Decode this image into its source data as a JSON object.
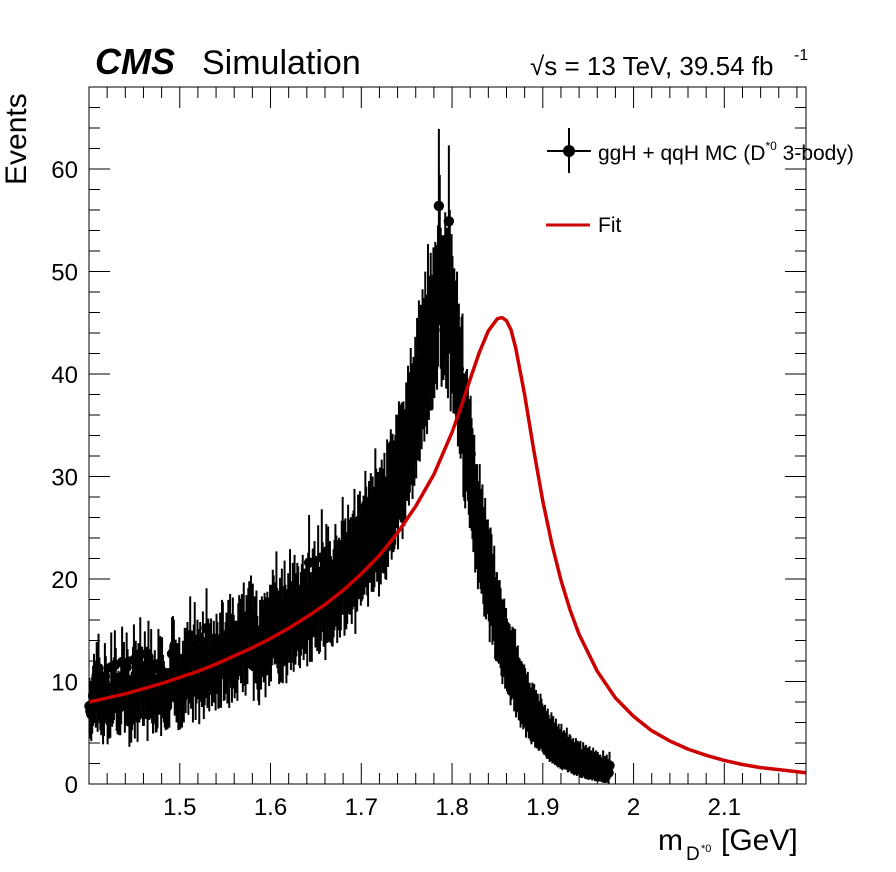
{
  "chart_data": {
    "type": "scatter",
    "cms_label": "CMS",
    "extra_label": "Simulation",
    "lumi_label": "√s = 13 TeV, 39.54 fb",
    "lumi_exponent": "-1",
    "xlabel_main": "m",
    "xlabel_sub": "D",
    "xlabel_sub_sup": "*0",
    "xlabel_unit": "[GeV]",
    "ylabel": "Events",
    "xlim": [
      1.4,
      2.19
    ],
    "ylim": [
      0,
      68
    ],
    "x_ticks": [
      "1.5",
      "1.6",
      "1.7",
      "1.8",
      "1.9",
      "2",
      "2.1"
    ],
    "x_tick_values": [
      1.5,
      1.6,
      1.7,
      1.8,
      1.9,
      2.0,
      2.1
    ],
    "y_ticks": [
      "0",
      "10",
      "20",
      "30",
      "40",
      "50",
      "60"
    ],
    "y_tick_values": [
      0,
      10,
      20,
      30,
      40,
      50,
      60
    ],
    "legend_position": "top-right",
    "series": [
      {
        "name": "ggH + qqH MC (D*0 3-body)",
        "legend_main": "ggH + qqH MC (D",
        "legend_sup": "*0",
        "legend_tail": " 3-body)",
        "style": "points-with-errors",
        "color": "#000000",
        "bin_width": 0.001,
        "x_start": 1.4005,
        "values": [
          7.6,
          7.1,
          6.8,
          7.7,
          8.6,
          9.6,
          9.0,
          8.4,
          10.6,
          7.9,
          11.3,
          9.3,
          8.1,
          7.5,
          8.4,
          6.4,
          7.4,
          10.5,
          9.4,
          8.7,
          6.4,
          8.8,
          7.1,
          7.2,
          11.4,
          8.5,
          8.9,
          9.3,
          11.6,
          10.1,
          8.0,
          7.6,
          8.2,
          7.5,
          7.5,
          8.8,
          11.9,
          10.5,
          10.6,
          7.8,
          9.0,
          11.4,
          10.0,
          9.4,
          6.1,
          7.8,
          6.6,
          8.1,
          10.2,
          12.1,
          7.1,
          10.7,
          9.0,
          6.7,
          10.5,
          9.0,
          12.7,
          10.2,
          10.2,
          8.6,
          8.6,
          11.5,
          9.5,
          10.2,
          6.8,
          12.4,
          9.3,
          10.0,
          11.7,
          8.9,
          7.7,
          8.8,
          9.9,
          7.8,
          7.9,
          8.3,
          11.7,
          9.9,
          11.1,
          7.4,
          11.0,
          9.5,
          9.0,
          8.4,
          8.1,
          8.4,
          8.2,
          8.4,
          8.4,
          10.4,
          10.6,
          12.7,
          12.8,
          12.5,
          9.8,
          10.8,
          9.0,
          10.5,
          8.1,
          11.0,
          8.2,
          9.6,
          8.4,
          10.7,
          9.0,
          11.8,
          10.1,
          11.8,
          12.3,
          9.9,
          11.2,
          14.5,
          10.6,
          10.8,
          9.0,
          12.1,
          14.0,
          9.3,
          11.2,
          12.5,
          11.7,
          8.8,
          12.3,
          11.4,
          10.8,
          13.2,
          9.4,
          11.0,
          11.8,
          15.2,
          10.7,
          12.6,
          10.3,
          12.2,
          12.6,
          10.9,
          11.3,
          12.4,
          11.3,
          10.4,
          13.0,
          12.3,
          10.6,
          10.7,
          13.1,
          10.7,
          14.2,
          14.0,
          11.5,
          11.6,
          12.3,
          13.1,
          11.2,
          14.2,
          10.7,
          14.7,
          13.0,
          11.3,
          14.4,
          12.9,
          11.8,
          12.4,
          12.4,
          11.5,
          13.9,
          14.6,
          14.3,
          13.5,
          14.7,
          12.5,
          15.7,
          13.2,
          12.1,
          14.6,
          13.4,
          15.2,
          15.8,
          15.1,
          16.3,
          15.6,
          15.6,
          11.5,
          14.5,
          13.5,
          15.0,
          12.8,
          11.5,
          11.0,
          14.2,
          12.8,
          14.5,
          14.2,
          13.6,
          14.8,
          11.9,
          14.4,
          14.9,
          14.4,
          13.2,
          15.5,
          13.7,
          15.5,
          16.8,
          16.3,
          15.6,
          15.7,
          18.4,
          15.2,
          14.6,
          13.4,
          16.1,
          13.6,
          16.9,
          13.5,
          15.4,
          17.6,
          15.5,
          13.5,
          14.4,
          16.5,
          15.8,
          18.6,
          15.0,
          15.8,
          17.4,
          14.8,
          18.1,
          15.6,
          16.5,
          17.4,
          17.1,
          15.5,
          15.2,
          16.6,
          17.3,
          18.1,
          16.1,
          16.9,
          16.8,
          17.6,
          15.4,
          18.3,
          21.6,
          15.9,
          16.6,
          15.9,
          18.6,
          18.7,
          19.3,
          17.5,
          18.0,
          17.1,
          20.7,
          16.8,
          17.0,
          18.2,
          22.1,
          19.2,
          17.6,
          18.8,
          16.1,
          20.8,
          18.0,
          20.6,
          18.1,
          19.3,
          18.0,
          17.7,
          17.6,
          18.6,
          19.4,
          20.8,
          19.8,
          18.0,
          19.4,
          19.6,
          18.6,
          19.4,
          21.1,
          23.2,
          21.1,
          18.8,
          21.3,
          19.5,
          20.1,
          22.5,
          21.2,
          21.1,
          21.4,
          20.1,
          21.7,
          22.0,
          23.9,
          19.0,
          21.4,
          21.5,
          23.4,
          22.8,
          23.7,
          22.1,
          22.6,
          22.8,
          23.3,
          23.3,
          25.5,
          24.1,
          23.2,
          22.0,
          24.6,
          24.6,
          25.3,
          23.6,
          25.0,
          23.6,
          24.1,
          27.5,
          25.7,
          24.7,
          25.4,
          23.1,
          25.8,
          24.4,
          26.5,
          25.7,
          25.6,
          27.1,
          25.0,
          24.9,
          28.3,
          26.3,
          28.0,
          28.1,
          29.2,
          27.1,
          28.8,
          27.9,
          28.2,
          28.7,
          30.5,
          30.5,
          28.2,
          31.7,
          31.4,
          31.1,
          31.6,
          29.3,
          31.7,
          30.7,
          31.0,
          33.4,
          33.4,
          34.9,
          32.9,
          34.3,
          36.5,
          35.1,
          33.6,
          35.7,
          35.0,
          37.5,
          35.8,
          39.2,
          37.7,
          40.8,
          37.6,
          40.4,
          38.9,
          41.8,
          41.0,
          39.7,
          43.4,
          41.3,
          40.5,
          45.9,
          42.0,
          43.0,
          45.1,
          43.0,
          43.1,
          45.6,
          44.3,
          46.1,
          45.8,
          45.2,
          47.6,
          56.4,
          52.2,
          47.4,
          45.5,
          46.7,
          46.2,
          46.7,
          48.8,
          45.3,
          47.4,
          44.3,
          54.9,
          49.0,
          42.9,
          46.8,
          44.8,
          42.7,
          43.7,
          42.6,
          41.5,
          43.4,
          39.2,
          40.5,
          38.4,
          37.9,
          39.3,
          39.6,
          33.8,
          33.4,
          32.6,
          34.4,
          34.6,
          33.4,
          31.9,
          30.5,
          32.2,
          30.2,
          29.3,
          27.9,
          28.7,
          25.7,
          26.1,
          26.1,
          23.9,
          24.6,
          26.1,
          23.9,
          23.4,
          24.3,
          22.3,
          20.9,
          23.1,
          20.6,
          21.2,
          21.2,
          20.4,
          18.1,
          20.5,
          19.9,
          17.8,
          18.2,
          18.9,
          16.2,
          16.0,
          16.6,
          15.9,
          15.7,
          15.9,
          15.2,
          14.3,
          13.4,
          14.2,
          14.3,
          12.9,
          13.5,
          12.6,
          12.3,
          12.2,
          12.1,
          11.0,
          11.6,
          11.9,
          11.8,
          10.3,
          11.7,
          9.6,
          10.2,
          10.3,
          9.3,
          9.2,
          8.4,
          9.0,
          8.8,
          8.2,
          8.7,
          8.4,
          7.2,
          7.9,
          8.1,
          7.1,
          7.2,
          6.8,
          6.4,
          7.2,
          6.7,
          7.1,
          6.0,
          6.6,
          5.9,
          6.3,
          5.6,
          5.7,
          6.3,
          5.9,
          5.5,
          5.3,
          5.1,
          5.4,
          4.9,
          4.6,
          5.1,
          4.6,
          4.2,
          4.3,
          4.8,
          4.0,
          4.5,
          4.0,
          3.8,
          4.3,
          3.7,
          3.5,
          3.9,
          3.5,
          3.3,
          3.9,
          3.1,
          3.3,
          3.4,
          3.2,
          3.2,
          3.6,
          2.8,
          2.9,
          3.1,
          3.0,
          2.7,
          2.6,
          2.8,
          2.4,
          2.5,
          2.8,
          2.3,
          2.6,
          2.5,
          2.1,
          2.6,
          2.0,
          2.0,
          2.5,
          2.2,
          1.9,
          2.3,
          1.8,
          2.1,
          1.7,
          2.2,
          1.8,
          1.9,
          1.6,
          2.1,
          1.8,
          1.5,
          1.9,
          1.5,
          1.8,
          1.4,
          1.6,
          1.6,
          1.4,
          1.3,
          1.9,
          1.2,
          1.5,
          1.2,
          1.6,
          1.3,
          1.1,
          1.8
        ]
      },
      {
        "name": "Fit",
        "style": "line",
        "color": "#cc0000",
        "x": [
          1.4,
          1.42,
          1.44,
          1.46,
          1.48,
          1.5,
          1.52,
          1.54,
          1.56,
          1.58,
          1.6,
          1.62,
          1.64,
          1.66,
          1.68,
          1.7,
          1.72,
          1.74,
          1.76,
          1.78,
          1.8,
          1.81,
          1.82,
          1.83,
          1.84,
          1.85,
          1.855,
          1.86,
          1.865,
          1.87,
          1.88,
          1.89,
          1.9,
          1.91,
          1.92,
          1.93,
          1.94,
          1.96,
          1.98,
          2.0,
          2.02,
          2.04,
          2.06,
          2.08,
          2.1,
          2.12,
          2.14,
          2.16,
          2.19
        ],
        "y": [
          8.0,
          8.4,
          8.8,
          9.3,
          9.8,
          10.4,
          11.0,
          11.7,
          12.5,
          13.3,
          14.2,
          15.2,
          16.3,
          17.5,
          18.9,
          20.5,
          22.3,
          24.5,
          27.1,
          30.2,
          34.3,
          36.8,
          39.5,
          42.1,
          44.2,
          45.4,
          45.5,
          45.2,
          44.3,
          42.6,
          38.0,
          32.6,
          27.6,
          23.4,
          19.9,
          17.0,
          14.6,
          11.0,
          8.4,
          6.6,
          5.2,
          4.2,
          3.4,
          2.8,
          2.3,
          1.9,
          1.6,
          1.4,
          1.1
        ]
      }
    ]
  }
}
